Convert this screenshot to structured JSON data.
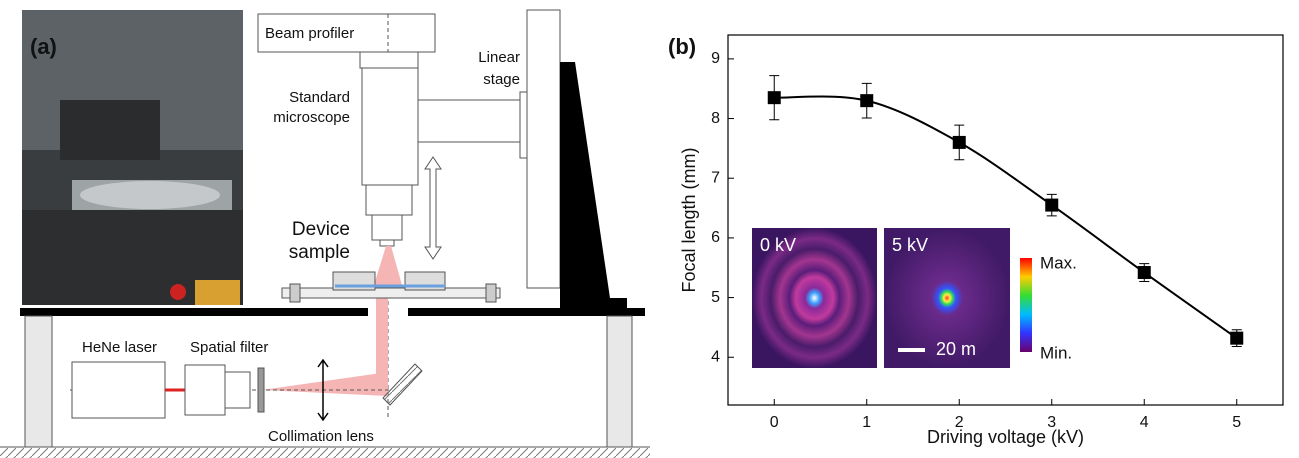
{
  "panel_labels": [
    "(a)",
    "(b)"
  ],
  "diagram": {
    "beam_profiler": "Beam profiler",
    "linear_stage": [
      "Linear",
      "stage"
    ],
    "standard_microscope": [
      "Standard",
      "microscope"
    ],
    "device_sample": [
      "Device",
      "sample"
    ],
    "hene_laser": "HeNe laser",
    "spatial_filter": "Spatial filter",
    "collimation_lens": "Collimation lens"
  },
  "chart_data": {
    "type": "errorbar-line",
    "x_label": "Driving voltage (kV)",
    "y_label": "Focal length (mm)",
    "x": [
      0,
      1,
      2,
      3,
      4,
      5
    ],
    "values": [
      8.35,
      8.3,
      7.6,
      6.55,
      5.42,
      4.32
    ],
    "errors": [
      0.37,
      0.29,
      0.29,
      0.18,
      0.15,
      0.14
    ],
    "color": "#000000",
    "xlim": [
      -0.5,
      5.5
    ],
    "xticks": [
      0,
      1,
      2,
      3,
      4,
      5
    ],
    "ylim": [
      3.2,
      9.4
    ],
    "yticks": [
      4,
      5,
      6,
      7,
      8,
      9
    ],
    "inset": {
      "labels": [
        "0 kV",
        "5 kV"
      ],
      "scale_bar": "20 m",
      "colorbar": [
        "Max.",
        "Min."
      ]
    }
  }
}
